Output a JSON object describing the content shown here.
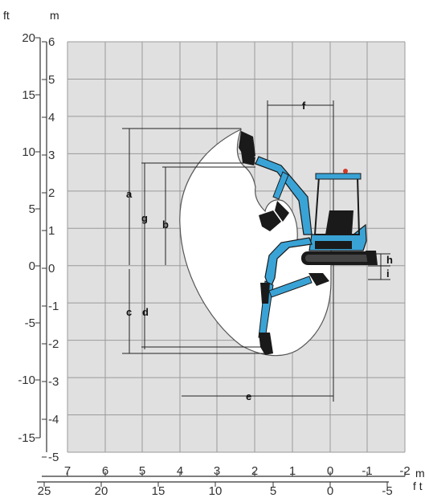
{
  "colors": {
    "grid_bg": "#e0e0e0",
    "grid_line": "#9a9a9a",
    "envelope_fill": "#ffffff",
    "machine_blue": "#3aa3d6",
    "machine_dark": "#1a1a1a",
    "dim_line": "#222222"
  },
  "axes": {
    "left_unit_ft": "ft",
    "left_unit_m": "m",
    "bottom_unit_m": "m",
    "bottom_unit_ft": "f t",
    "m_vertical_ticks": [
      "6",
      "5",
      "4",
      "3",
      "2",
      "1",
      "0",
      "-1",
      "-2",
      "-3",
      "-4",
      "-5"
    ],
    "ft_vertical_ticks": [
      "20",
      "15",
      "10",
      "5",
      "0",
      "-5",
      "-10",
      "-15"
    ],
    "m_horizontal_ticks": [
      "7",
      "6",
      "5",
      "4",
      "3",
      "2",
      "1",
      "0",
      "-1",
      "-2"
    ],
    "ft_horizontal_ticks": [
      "25",
      "20",
      "15",
      "10",
      "5",
      "0",
      "-5"
    ]
  },
  "dimensions": {
    "a": "a",
    "b": "b",
    "c": "c",
    "d": "d",
    "e": "e",
    "f": "f",
    "g": "g",
    "h": "h",
    "i": "i"
  },
  "icons": {
    "machine": "mini-excavator-icon"
  }
}
